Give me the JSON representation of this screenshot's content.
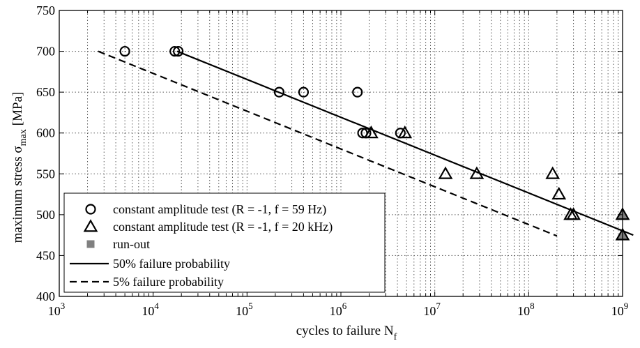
{
  "chart_data": {
    "type": "scatter",
    "xscale": "log",
    "xlim": [
      1000,
      1000000000
    ],
    "ylim": [
      400,
      750
    ],
    "grid": true,
    "xlabel": "cycles to failure N",
    "xlabel_sub": "f",
    "ylabel": "maximum stress σ",
    "ylabel_sub": "max",
    "ylabel_unit": "[MPa]",
    "x_ticks": [
      {
        "base": "10",
        "exp": "3",
        "value": 1000
      },
      {
        "base": "10",
        "exp": "4",
        "value": 10000
      },
      {
        "base": "10",
        "exp": "5",
        "value": 100000
      },
      {
        "base": "10",
        "exp": "6",
        "value": 1000000
      },
      {
        "base": "10",
        "exp": "7",
        "value": 10000000
      },
      {
        "base": "10",
        "exp": "8",
        "value": 100000000
      },
      {
        "base": "10",
        "exp": "9",
        "value": 1000000000
      }
    ],
    "y_ticks": [
      "400",
      "450",
      "500",
      "550",
      "600",
      "650",
      "700",
      "750"
    ],
    "legend_position": "bottom-left",
    "series": [
      {
        "name": "constant amplitude test (R = -1, f = 59 Hz)",
        "marker": "circle",
        "fill": "none",
        "points": [
          [
            5000,
            700
          ],
          [
            17000,
            700
          ],
          [
            18500,
            700
          ],
          [
            220000,
            650
          ],
          [
            400000,
            650
          ],
          [
            1500000,
            650
          ],
          [
            1700000,
            600
          ],
          [
            1850000,
            600
          ],
          [
            4300000,
            600
          ]
        ]
      },
      {
        "name": "constant amplitude test (R = -1, f = 20 kHz)",
        "marker": "triangle",
        "fill": "none",
        "points": [
          [
            2100000,
            600
          ],
          [
            4800000,
            600
          ],
          [
            13000000,
            550
          ],
          [
            28000000,
            550
          ],
          [
            180000000,
            550
          ],
          [
            210000000,
            525
          ],
          [
            280000000,
            500
          ],
          [
            300000000,
            500
          ]
        ]
      },
      {
        "name": "run-out",
        "marker": "square",
        "fill": "#808080",
        "points": [
          [
            1000000000,
            500
          ],
          [
            1000000000,
            475
          ]
        ]
      },
      {
        "name": "50% failure probability",
        "style": "solid",
        "line": [
          [
            18000,
            700
          ],
          [
            1300000000,
            475
          ]
        ]
      },
      {
        "name": "5% failure probability",
        "style": "dashed",
        "line": [
          [
            2600,
            700
          ],
          [
            200000000,
            474
          ]
        ]
      }
    ]
  }
}
